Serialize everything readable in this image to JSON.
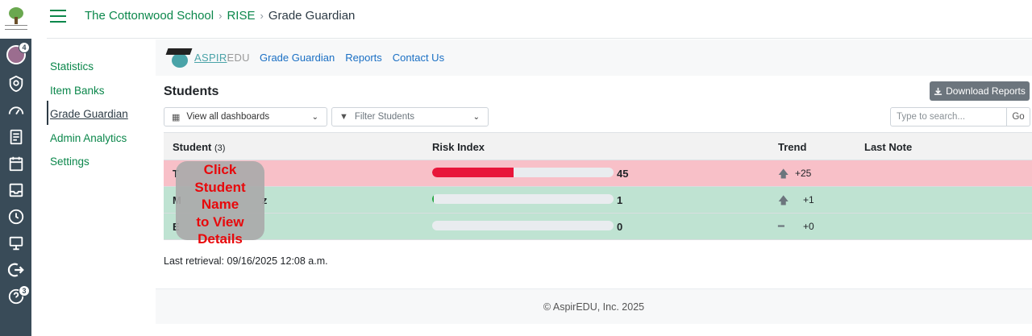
{
  "global_nav": {
    "items": [
      {
        "icon": "avatar-icon",
        "badge": "4"
      },
      {
        "icon": "admin-shield-icon"
      },
      {
        "icon": "dashboard-gauge-icon"
      },
      {
        "icon": "courses-book-icon"
      },
      {
        "icon": "calendar-icon"
      },
      {
        "icon": "inbox-icon"
      },
      {
        "icon": "history-clock-icon"
      },
      {
        "icon": "studio-icon"
      },
      {
        "icon": "logout-icon"
      },
      {
        "icon": "help-icon",
        "badge": "3"
      }
    ]
  },
  "breadcrumb": {
    "items": [
      "The Cottonwood School",
      "RISE",
      "Grade Guardian"
    ],
    "separator": "›"
  },
  "course_nav": {
    "items": [
      "Statistics",
      "Item Banks",
      "Grade Guardian",
      "Admin Analytics",
      "Settings"
    ],
    "active": "Grade Guardian"
  },
  "app": {
    "brand_aspir": "ASPIR",
    "brand_edu": "EDU",
    "links": [
      "Grade Guardian",
      "Reports",
      "Contact Us"
    ],
    "title": "Students",
    "download_label": "Download Reports",
    "dashboards_select": "View all dashboards",
    "filter_select": "Filter Students",
    "search_placeholder": "Type to search...",
    "go_label": "Go",
    "columns": {
      "student": "Student",
      "student_count": "(3)",
      "risk": "Risk Index",
      "trend": "Trend",
      "last_note": "Last Note"
    },
    "rows": [
      {
        "name": "T",
        "risk": 45,
        "risk_label": "45",
        "trend_dir": "up",
        "trend": "+25",
        "status": "high"
      },
      {
        "name": "M",
        "name_tail": "z",
        "risk": 1,
        "risk_label": "1",
        "trend_dir": "up",
        "trend": "+1",
        "status": "low"
      },
      {
        "name": "E",
        "risk": 0,
        "risk_label": "0",
        "trend_dir": "flat",
        "trend": "+0",
        "status": "low"
      }
    ],
    "tooltip_lines": [
      "Click",
      "Student",
      "Name",
      "to View",
      "Details"
    ],
    "retrieval": "Last retrieval: 09/16/2025 12:08 a.m.",
    "footer": "© AspirEDU, Inc. 2025"
  },
  "colors": {
    "canvas_nav": "#394b58",
    "link_green": "#0b874b",
    "risk_high_row": "#f8c0c8",
    "risk_low_row": "#bfe3d2",
    "risk_bar": "#e8163a"
  }
}
